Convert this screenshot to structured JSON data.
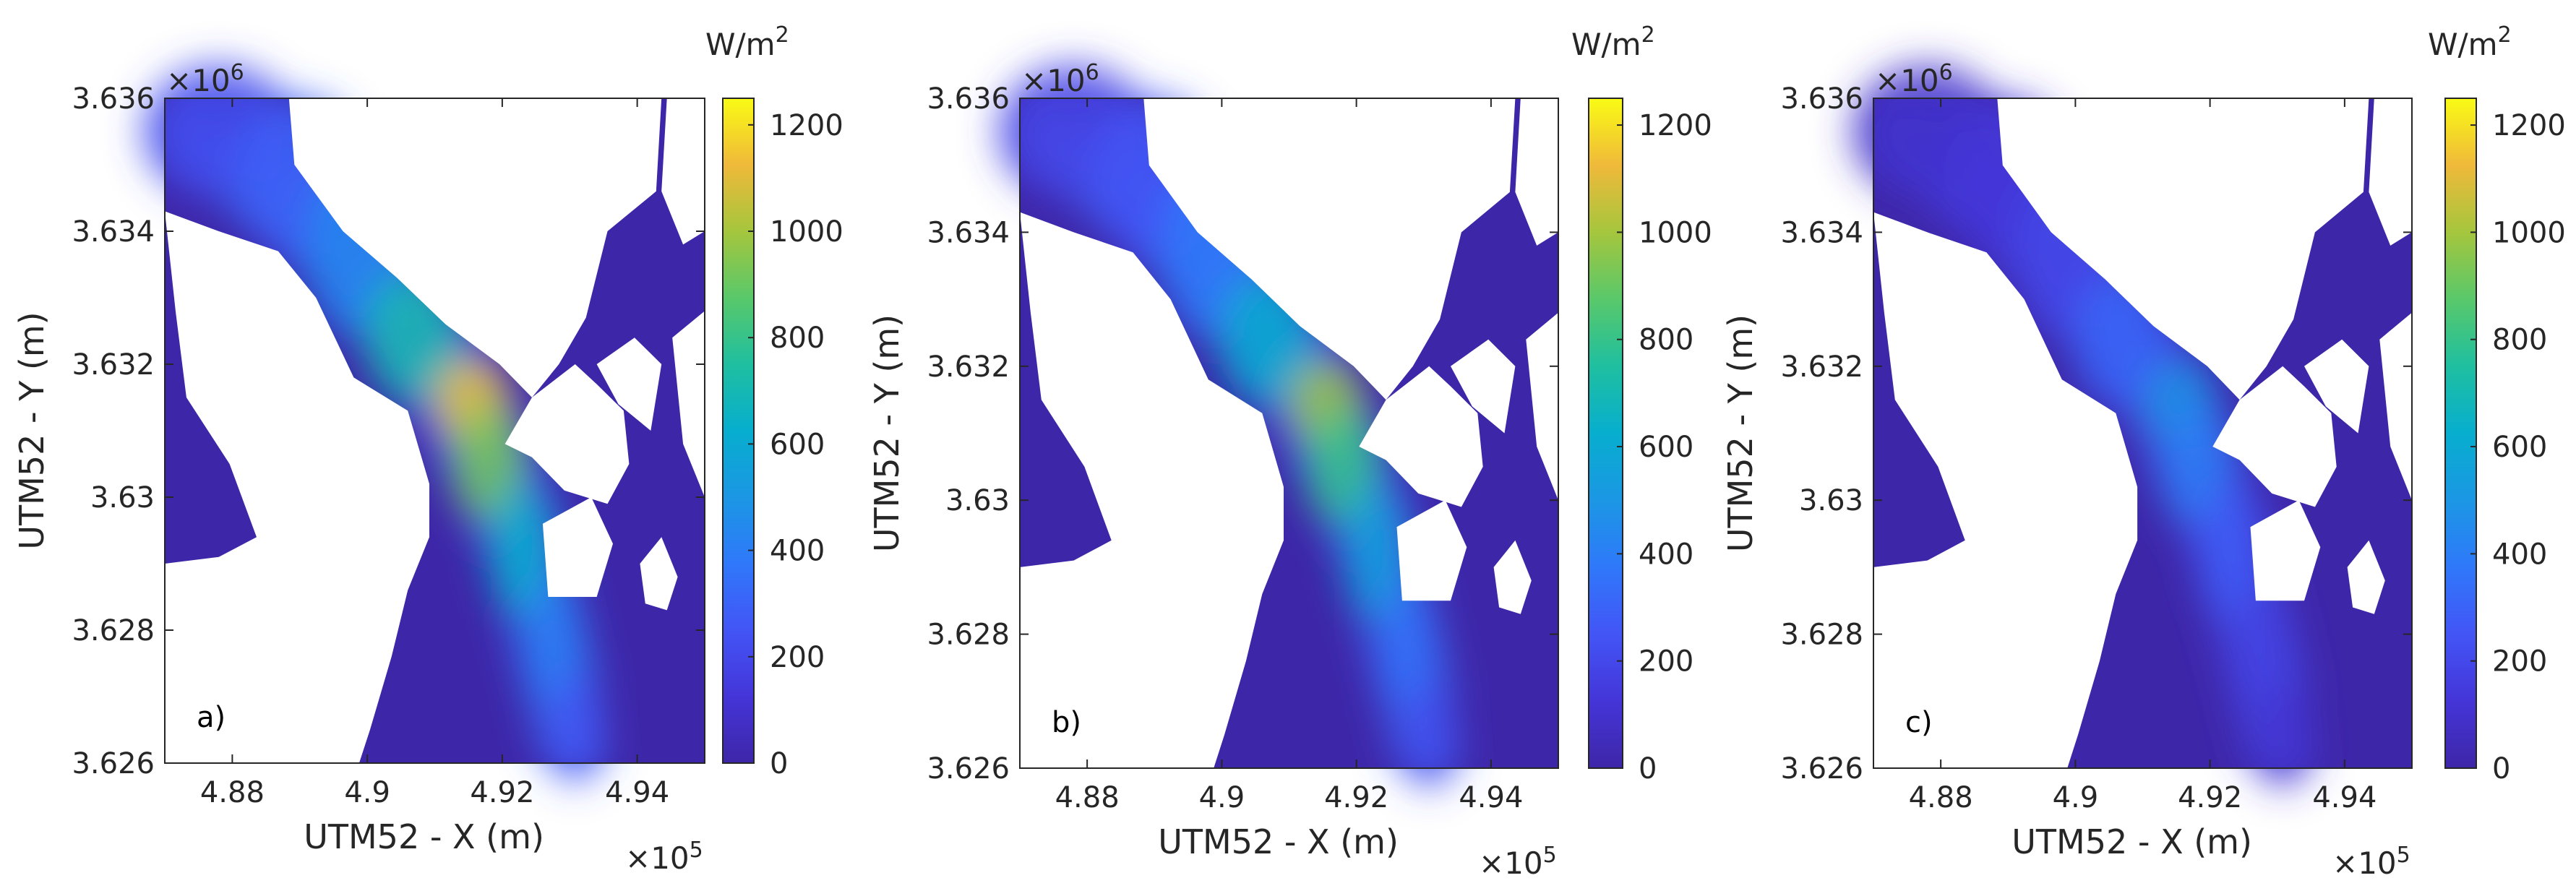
{
  "chart_data": [
    {
      "type": "heatmap",
      "panel_label": "a)",
      "xlabel": "UTM52 - X (m)",
      "ylabel": "UTM52 - Y (m)",
      "x_exponent": "×10",
      "x_exponent_power": "5",
      "y_exponent": "×10",
      "y_exponent_power": "6",
      "xticks": [
        "4.88",
        "4.9",
        "4.92",
        "4.94"
      ],
      "xtick_values": [
        4.88,
        4.9,
        4.92,
        4.94
      ],
      "yticks": [
        "3.626",
        "3.628",
        "3.63",
        "3.632",
        "3.634",
        "3.636"
      ],
      "ytick_values": [
        3.626,
        3.628,
        3.63,
        3.632,
        3.634,
        3.636
      ],
      "xlim": [
        4.87,
        4.95
      ],
      "ylim": [
        3.626,
        3.636
      ],
      "colorbar": {
        "unit": "W/m",
        "unit_power": "2",
        "ticks": [
          "0",
          "200",
          "400",
          "600",
          "800",
          "1000",
          "1200"
        ],
        "tick_values": [
          0,
          200,
          400,
          600,
          800,
          1000,
          1200
        ],
        "range": [
          0,
          1250
        ],
        "colormap": "parula"
      },
      "peak_intensity": 1150
    },
    {
      "type": "heatmap",
      "panel_label": "b)",
      "xlabel": "UTM52 - X (m)",
      "ylabel": "UTM52 - Y (m)",
      "x_exponent": "×10",
      "x_exponent_power": "5",
      "y_exponent": "×10",
      "y_exponent_power": "6",
      "xticks": [
        "4.88",
        "4.9",
        "4.92",
        "4.94"
      ],
      "xtick_values": [
        4.88,
        4.9,
        4.92,
        4.94
      ],
      "yticks": [
        "3.626",
        "3.628",
        "3.63",
        "3.632",
        "3.634",
        "3.636"
      ],
      "ytick_values": [
        3.626,
        3.628,
        3.63,
        3.632,
        3.634,
        3.636
      ],
      "xlim": [
        4.87,
        4.95
      ],
      "ylim": [
        3.626,
        3.636
      ],
      "colorbar": {
        "unit": "W/m",
        "unit_power": "2",
        "ticks": [
          "0",
          "200",
          "400",
          "600",
          "800",
          "1000",
          "1200"
        ],
        "tick_values": [
          0,
          200,
          400,
          600,
          800,
          1000,
          1200
        ],
        "range": [
          0,
          1250
        ],
        "colormap": "parula"
      },
      "peak_intensity": 1000
    },
    {
      "type": "heatmap",
      "panel_label": "c)",
      "xlabel": "UTM52 - X (m)",
      "ylabel": "UTM52 - Y (m)",
      "x_exponent": "×10",
      "x_exponent_power": "5",
      "y_exponent": "×10",
      "y_exponent_power": "6",
      "xticks": [
        "4.88",
        "4.9",
        "4.92",
        "4.94"
      ],
      "xtick_values": [
        4.88,
        4.9,
        4.92,
        4.94
      ],
      "yticks": [
        "3.626",
        "3.628",
        "3.63",
        "3.632",
        "3.634",
        "3.636"
      ],
      "ytick_values": [
        3.626,
        3.628,
        3.63,
        3.632,
        3.634,
        3.636
      ],
      "xlim": [
        4.87,
        4.95
      ],
      "ylim": [
        3.626,
        3.636
      ],
      "colorbar": {
        "unit": "W/m",
        "unit_power": "2",
        "ticks": [
          "0",
          "200",
          "400",
          "600",
          "800",
          "1000",
          "1200"
        ],
        "tick_values": [
          0,
          200,
          400,
          600,
          800,
          1000,
          1200
        ],
        "range": [
          0,
          1250
        ],
        "colormap": "parula"
      },
      "peak_intensity": 500
    }
  ],
  "colors": {
    "land": "#ffffff",
    "water_base": "#3e26a8",
    "axis": "#262626"
  }
}
